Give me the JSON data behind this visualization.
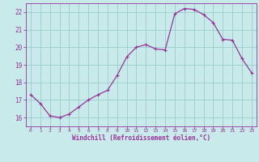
{
  "x": [
    0,
    1,
    2,
    3,
    4,
    5,
    6,
    7,
    8,
    9,
    10,
    11,
    12,
    13,
    14,
    15,
    16,
    17,
    18,
    19,
    20,
    21,
    22,
    23
  ],
  "y": [
    17.3,
    16.8,
    16.1,
    16.0,
    16.2,
    16.6,
    17.0,
    17.3,
    17.55,
    18.4,
    19.45,
    20.0,
    20.15,
    19.9,
    19.85,
    21.9,
    22.2,
    22.15,
    21.85,
    21.4,
    20.45,
    20.4,
    19.35,
    18.55
  ],
  "line_color": "#993399",
  "marker": "P",
  "marker_size": 2.5,
  "bg_color": "#c8eaea",
  "grid_color": "#99cccc",
  "xlabel": "Windchill (Refroidissement éolien,°C)",
  "xlabel_color": "#993399",
  "tick_color": "#993399",
  "ylim": [
    15.5,
    22.5
  ],
  "xlim": [
    -0.5,
    23.5
  ],
  "yticks": [
    16,
    17,
    18,
    19,
    20,
    21,
    22
  ],
  "xticks": [
    0,
    1,
    2,
    3,
    4,
    5,
    6,
    7,
    8,
    9,
    10,
    11,
    12,
    13,
    14,
    15,
    16,
    17,
    18,
    19,
    20,
    21,
    22,
    23
  ]
}
